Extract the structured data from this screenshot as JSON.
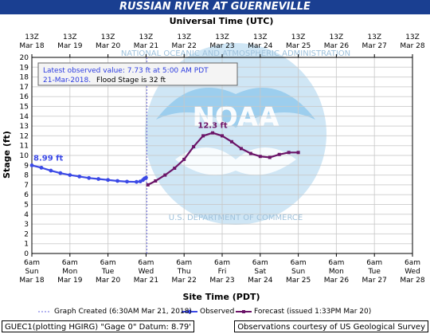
{
  "title": "RUSSIAN RIVER AT GUERNEVILLE",
  "top_axis_title": "Universal Time (UTC)",
  "info_box": {
    "line1": "Latest observed value: 7.73 ft at 5:00 AM PDT",
    "line2_date": "21-Mar-2018.",
    "line2_flood": "Flood Stage is 32 ft"
  },
  "legend": {
    "graph_created": "Graph Created (6:30AM Mar 21, 2018)",
    "observed": "Observed",
    "forecast": "Forecast (issued 1:33PM Mar 20)"
  },
  "footer": {
    "left": "GUEC1(plotting HGIRG) \"Gage 0\" Datum: 8.79'",
    "right": "Observations courtesy of US Geological Survey"
  },
  "colors": {
    "title_bg": "#1a3f91",
    "observed": "#3b49e6",
    "forecast": "#6b1468",
    "grid": "#c8c8c8",
    "background": "#ffffff",
    "created_line": "#6a6ae0"
  },
  "chart_data": {
    "type": "line",
    "title": "RUSSIAN RIVER AT GUERNEVILLE",
    "xlabel": "Site Time (PDT)",
    "ylabel": "Stage (ft)",
    "x2label": "Universal Time (UTC)",
    "ylim": [
      0,
      20
    ],
    "y_ticks": [
      0,
      1,
      2,
      3,
      4,
      5,
      6,
      7,
      8,
      9,
      10,
      11,
      12,
      13,
      14,
      15,
      16,
      17,
      18,
      19,
      20
    ],
    "x_units": "days after 6am PDT Mar 18",
    "xlim": [
      0,
      10
    ],
    "grid": true,
    "bottom_ticks": [
      {
        "line1": "6am",
        "line2": "Sun",
        "line3": "Mar 18"
      },
      {
        "line1": "6am",
        "line2": "Mon",
        "line3": "Mar 19"
      },
      {
        "line1": "6am",
        "line2": "Tue",
        "line3": "Mar 20"
      },
      {
        "line1": "6am",
        "line2": "Wed",
        "line3": "Mar 21"
      },
      {
        "line1": "6am",
        "line2": "Thu",
        "line3": "Mar 22"
      },
      {
        "line1": "6am",
        "line2": "Fri",
        "line3": "Mar 23"
      },
      {
        "line1": "6am",
        "line2": "Sat",
        "line3": "Mar 24"
      },
      {
        "line1": "6am",
        "line2": "Sun",
        "line3": "Mar 25"
      },
      {
        "line1": "6am",
        "line2": "Mon",
        "line3": "Mar 26"
      },
      {
        "line1": "6am",
        "line2": "Tue",
        "line3": "Mar 27"
      },
      {
        "line1": "6am",
        "line2": "Wed",
        "line3": "Mar 28"
      }
    ],
    "top_ticks": [
      {
        "line1": "13Z",
        "line2": "Mar 18"
      },
      {
        "line1": "13Z",
        "line2": "Mar 19"
      },
      {
        "line1": "13Z",
        "line2": "Mar 20"
      },
      {
        "line1": "13Z",
        "line2": "Mar 21"
      },
      {
        "line1": "13Z",
        "line2": "Mar 22"
      },
      {
        "line1": "13Z",
        "line2": "Mar 23"
      },
      {
        "line1": "13Z",
        "line2": "Mar 24"
      },
      {
        "line1": "13Z",
        "line2": "Mar 25"
      },
      {
        "line1": "13Z",
        "line2": "Mar 26"
      },
      {
        "line1": "13Z",
        "line2": "Mar 27"
      },
      {
        "line1": "13Z",
        "line2": "Mar 28"
      }
    ],
    "graph_created_x": 3.02,
    "annotations": [
      {
        "text": "8.99 ft",
        "series": "observed",
        "x": 0,
        "y": 8.99
      },
      {
        "text": "12.3 ft",
        "series": "forecast",
        "x": 4.75,
        "y": 12.3
      }
    ],
    "series": [
      {
        "name": "Observed",
        "color": "#3b49e6",
        "x": [
          0,
          0.25,
          0.5,
          0.75,
          1.0,
          1.25,
          1.5,
          1.75,
          2.0,
          2.25,
          2.5,
          2.75,
          2.85,
          2.92,
          2.96,
          3.0
        ],
        "y": [
          8.99,
          8.75,
          8.45,
          8.2,
          8.0,
          7.85,
          7.7,
          7.6,
          7.5,
          7.4,
          7.33,
          7.3,
          7.35,
          7.5,
          7.65,
          7.73
        ]
      },
      {
        "name": "Forecast (issued 1:33PM Mar 20)",
        "color": "#6b1468",
        "x": [
          3.05,
          3.25,
          3.5,
          3.75,
          4.0,
          4.25,
          4.5,
          4.75,
          5.0,
          5.25,
          5.5,
          5.75,
          6.0,
          6.25,
          6.5,
          6.75,
          7.0
        ],
        "y": [
          7.0,
          7.4,
          8.0,
          8.7,
          9.6,
          10.9,
          12.0,
          12.3,
          12.0,
          11.4,
          10.7,
          10.2,
          9.9,
          9.8,
          10.1,
          10.3,
          10.3
        ]
      }
    ]
  }
}
